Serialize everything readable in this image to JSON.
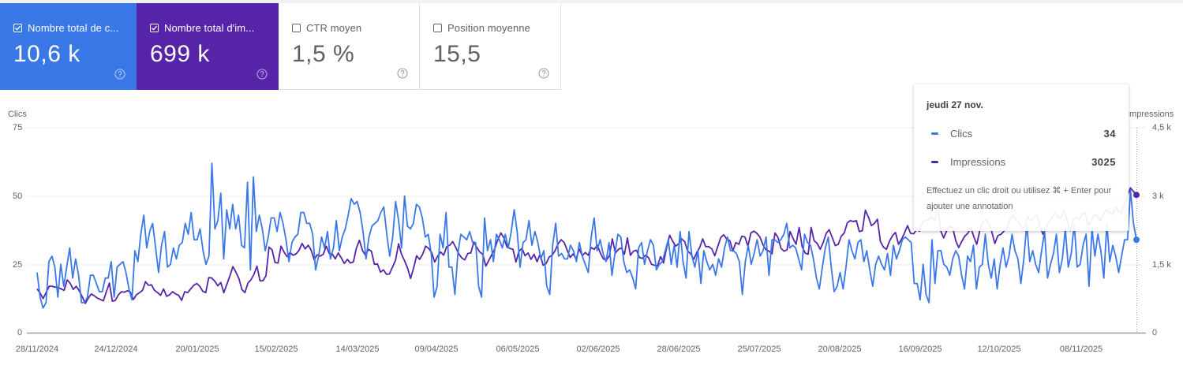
{
  "metric_cards": [
    {
      "id": "clicks",
      "label": "Nombre total de c...",
      "value": "10,6 k",
      "checked": true,
      "color": "#3b78e7"
    },
    {
      "id": "impressions",
      "label": "Nombre total d'im...",
      "value": "699 k",
      "checked": true,
      "color": "#5524a8"
    },
    {
      "id": "ctr",
      "label": "CTR moyen",
      "value": "1,5 %",
      "checked": false
    },
    {
      "id": "position",
      "label": "Position moyenne",
      "value": "15,5",
      "checked": false
    }
  ],
  "tooltip": {
    "date": "jeudi 27 nov.",
    "rows": [
      {
        "name": "Clics",
        "value": "34",
        "color": "#3b78e7"
      },
      {
        "name": "Impressions",
        "value": "3025",
        "color": "#5524a8"
      }
    ],
    "hint": "Effectuez un clic droit ou utilisez ⌘ + Enter pour ajouter une annotation"
  },
  "chart_data": {
    "type": "line",
    "title": "",
    "xlabel": "",
    "ylabel": "Clics",
    "ylabel_right": "Impressions",
    "ylim": [
      0,
      75
    ],
    "ylim_right": [
      0,
      4500
    ],
    "yticks_left": [
      "0",
      "25",
      "50",
      "75"
    ],
    "yticks_right": [
      "0",
      "1,5 k",
      "3 k",
      "4,5 k"
    ],
    "xticks": [
      "28/11/2024",
      "24/12/2024",
      "20/01/2025",
      "15/02/2025",
      "14/03/2025",
      "09/04/2025",
      "06/05/2025",
      "02/06/2025",
      "28/06/2025",
      "25/07/2025",
      "20/08/2025",
      "16/09/2025",
      "12/10/2025",
      "08/11/2025"
    ],
    "grid": true,
    "legend": false,
    "series": [
      {
        "name": "Clics",
        "axis": "left",
        "color": "#3b78e7",
        "values": [
          22,
          13,
          9,
          11,
          26,
          28,
          24,
          13,
          25,
          17,
          24,
          31,
          20,
          27,
          21,
          11,
          11,
          13,
          21,
          21,
          18,
          15,
          15,
          20,
          20,
          26,
          13,
          24,
          25,
          26,
          22,
          16,
          12,
          30,
          26,
          36,
          43,
          31,
          37,
          40,
          31,
          22,
          32,
          37,
          24,
          25,
          31,
          27,
          32,
          33,
          40,
          36,
          44,
          34,
          34,
          38,
          30,
          25,
          28,
          62,
          38,
          41,
          51,
          27,
          45,
          38,
          47,
          38,
          43,
          32,
          31,
          55,
          23,
          57,
          37,
          43,
          38,
          30,
          35,
          42,
          42,
          37,
          44,
          40,
          34,
          26,
          33,
          35,
          36,
          44,
          44,
          40,
          40,
          36,
          23,
          28,
          35,
          31,
          37,
          27,
          31,
          41,
          30,
          35,
          38,
          43,
          49,
          47,
          48,
          44,
          37,
          27,
          35,
          39,
          40,
          41,
          44,
          46,
          36,
          28,
          35,
          48,
          41,
          31,
          50,
          39,
          38,
          40,
          47,
          46,
          42,
          35,
          36,
          29,
          13,
          17,
          36,
          31,
          44,
          24,
          24,
          14,
          29,
          36,
          35,
          34,
          37,
          33,
          33,
          17,
          13,
          42,
          30,
          34,
          26,
          36,
          34,
          31,
          36,
          31,
          37,
          45,
          37,
          24,
          33,
          34,
          41,
          32,
          37,
          33,
          27,
          30,
          17,
          14,
          32,
          40,
          28,
          29,
          27,
          27,
          32,
          30,
          26,
          33,
          28,
          25,
          22,
          35,
          42,
          30,
          34,
          29,
          26,
          33,
          21,
          29,
          36,
          35,
          26,
          22,
          23,
          20,
          16,
          31,
          33,
          25,
          30,
          34,
          32,
          23,
          25,
          26,
          30,
          34,
          25,
          32,
          24,
          37,
          26,
          20,
          37,
          28,
          24,
          30,
          18,
          30,
          26,
          23,
          25,
          21,
          27,
          24,
          31,
          35,
          30,
          30,
          29,
          26,
          14,
          26,
          32,
          25,
          29,
          34,
          28,
          30,
          35,
          21,
          34,
          34,
          33,
          34,
          36,
          40,
          31,
          32,
          31,
          27,
          23,
          36,
          33,
          32,
          27,
          20,
          16,
          24,
          31,
          35,
          24,
          15,
          17,
          22,
          16,
          24,
          34,
          30,
          27,
          33,
          34,
          26,
          30,
          23,
          17,
          25,
          28,
          25,
          23,
          29,
          21,
          32,
          27,
          30,
          34,
          35,
          34,
          33,
          18,
          18,
          12,
          25,
          14,
          11,
          34,
          18,
          30,
          30,
          25,
          24,
          21,
          27,
          30,
          28,
          21,
          16,
          28,
          26,
          32,
          16,
          24,
          25,
          36,
          25,
          20,
          27,
          16,
          25,
          31,
          24,
          28,
          36,
          30,
          27,
          18,
          27,
          40,
          26,
          30,
          25,
          22,
          30,
          37,
          20,
          25,
          29,
          36,
          22,
          27,
          38,
          24,
          29,
          40,
          24,
          25,
          32,
          36,
          17,
          38,
          28,
          36,
          30,
          20,
          40,
          26,
          32,
          28,
          22,
          28,
          34,
          34,
          52,
          40,
          34
        ]
      },
      {
        "name": "Impressions",
        "axis": "right",
        "color": "#5524a8",
        "values": [
          960,
          870,
          750,
          880,
          1020,
          1020,
          1000,
          990,
          960,
          930,
          1160,
          1080,
          950,
          1020,
          920,
          790,
          640,
          760,
          850,
          810,
          760,
          730,
          700,
          900,
          1090,
          690,
          710,
          830,
          900,
          890,
          920,
          890,
          730,
          830,
          880,
          930,
          1120,
          1040,
          1050,
          930,
          880,
          820,
          960,
          800,
          830,
          900,
          850,
          820,
          710,
          900,
          880,
          960,
          1040,
          1080,
          1020,
          910,
          880,
          1210,
          1200,
          1130,
          1030,
          1100,
          880,
          1060,
          1250,
          1450,
          1330,
          1190,
          950,
          880,
          1090,
          1160,
          1280,
          1460,
          1140,
          1140,
          1250,
          1880,
          1820,
          1540,
          1530,
          1900,
          1770,
          1670,
          1760,
          1700,
          1730,
          1810,
          1960,
          1840,
          1920,
          1810,
          1600,
          1710,
          1680,
          1720,
          1900,
          1740,
          1730,
          1620,
          1750,
          1640,
          1520,
          1610,
          1530,
          1550,
          1850,
          2030,
          1810,
          1700,
          1830,
          1790,
          1500,
          1510,
          1330,
          1380,
          1280,
          1290,
          1440,
          1590,
          1950,
          1720,
          1580,
          1420,
          1190,
          1420,
          1690,
          1610,
          1720,
          1900,
          1850,
          1760,
          1550,
          1680,
          1770,
          1700,
          1890,
          1920,
          2000,
          1870,
          1730,
          1640,
          1600,
          1740,
          1750,
          1990,
          1870,
          1770,
          1720,
          1460,
          1590,
          1720,
          1850,
          2050,
          2190,
          2080,
          1880,
          1850,
          1830,
          1550,
          1790,
          1850,
          1690,
          1750,
          1610,
          1720,
          1560,
          1720,
          1480,
          1520,
          1660,
          1700,
          1800,
          1950,
          2040,
          1980,
          1810,
          1650,
          1730,
          1620,
          1840,
          1690,
          1760,
          1700,
          1870,
          1830,
          1920,
          1750,
          1620,
          1590,
          1690,
          2060,
          1750,
          1830,
          1860,
          1720,
          2080,
          1700,
          1790,
          1810,
          1650,
          1630,
          1700,
          1650,
          1500,
          1480,
          1470,
          1670,
          1530,
          1860,
          2140,
          2010,
          1900,
          1950,
          2060,
          2000,
          1790,
          1730,
          1610,
          1760,
          1870,
          2060,
          1890,
          1890,
          1840,
          1690,
          1890,
          2090,
          2150,
          2050,
          2020,
          1790,
          1980,
          1940,
          2120,
          2100,
          1900,
          2190,
          2230,
          2180,
          2100,
          1930,
          1820,
          1790,
          1730,
          2190,
          2090,
          1850,
          1790,
          1820,
          2220,
          2070,
          1940,
          2310,
          1890,
          1750,
          1720,
          2310,
          2020,
          1960,
          1830,
          1980,
          2180,
          2260,
          2090,
          1910,
          1940,
          2120,
          2190,
          2410,
          2460,
          2440,
          2460,
          2220,
          2240,
          2690,
          2540,
          2350,
          2400,
          2490,
          2000,
          1880,
          1830,
          2010,
          2130,
          2200,
          1940,
          2050,
          2190,
          2350,
          2180,
          2170,
          2260,
          2230,
          2440,
          2460,
          2480,
          2540,
          2450,
          2820,
          2240,
          2080,
          2240,
          2340,
          2310,
          2020,
          1870,
          2000,
          2120,
          2180,
          2300,
          2110,
          1940,
          2240,
          2440,
          2480,
          2400,
          2210,
          1960,
          2130,
          2160,
          2230,
          2300,
          2480,
          2580,
          2480,
          2420,
          2270,
          2340,
          2550,
          2450,
          2530,
          2590,
          2320,
          2160,
          2310,
          2450,
          2520,
          2650,
          2530,
          2530,
          2690,
          2460,
          2240,
          2470,
          2530,
          2490,
          2590,
          2640,
          2350,
          2460,
          2590,
          2570,
          2450,
          2580,
          2700,
          2640,
          2590,
          2760,
          2680,
          2600,
          2840,
          3000,
          3180,
          3100,
          3025
        ]
      }
    ]
  }
}
